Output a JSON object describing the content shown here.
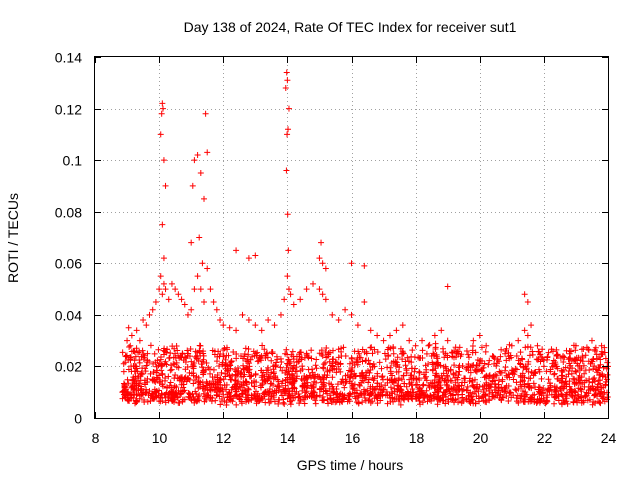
{
  "chart_data": {
    "type": "scatter",
    "title": "Day 138 of 2024, Rate Of TEC Index for receiver sut1",
    "xlabel": "GPS time / hours",
    "ylabel": "ROTI / TECUs",
    "xlim": [
      8,
      24
    ],
    "ylim": [
      0,
      0.14
    ],
    "grid": true,
    "x_ticks": [
      8,
      10,
      12,
      14,
      16,
      18,
      20,
      22,
      24
    ],
    "x_tick_labels": [
      "8",
      "10",
      "12",
      "14",
      "16",
      "18",
      "20",
      "22",
      "24"
    ],
    "y_ticks": [
      0,
      0.02,
      0.04,
      0.06,
      0.08,
      0.1,
      0.12,
      0.14
    ],
    "y_tick_labels": [
      "0",
      "0.02",
      "0.04",
      "0.06",
      "0.08",
      "0.1",
      "0.12",
      "0.14"
    ],
    "marker": "+",
    "marker_color": "#ff0000",
    "series": [
      {
        "name": "ROTI",
        "color": "#ff0000",
        "x": [
          8.9,
          8.95,
          9.0,
          9.05,
          9.1,
          9.15,
          9.2,
          9.3,
          9.4,
          9.5,
          9.6,
          9.7,
          9.8,
          9.9,
          10.0,
          10.05,
          10.1,
          10.15,
          10.2,
          10.3,
          10.4,
          10.5,
          10.6,
          10.7,
          10.8,
          10.9,
          11.0,
          11.1,
          11.2,
          11.3,
          11.4,
          11.5,
          11.6,
          11.7,
          11.8,
          11.9,
          12.0,
          12.2,
          12.4,
          12.6,
          12.8,
          13.0,
          13.2,
          13.4,
          13.6,
          13.8,
          13.9,
          14.0,
          14.05,
          14.1,
          14.2,
          14.4,
          14.6,
          14.8,
          15.0,
          15.1,
          15.2,
          15.4,
          15.6,
          15.8,
          16.0,
          16.2,
          16.4,
          16.6,
          16.8,
          17.0,
          17.2,
          17.4,
          17.6,
          17.8,
          18.0,
          18.2,
          18.4,
          18.6,
          18.8,
          19.0,
          19.2,
          19.4,
          19.6,
          19.8,
          20.0,
          20.2,
          20.4,
          20.6,
          20.8,
          21.0,
          21.2,
          21.4,
          21.5,
          21.6,
          21.8,
          22.0,
          22.2,
          22.4,
          22.6,
          22.8,
          23.0,
          23.2,
          23.4,
          23.6,
          23.8,
          24.0,
          10.05,
          10.08,
          10.1,
          10.12,
          10.15,
          10.2,
          10.1,
          10.15,
          11.0,
          11.05,
          11.1,
          11.2,
          11.3,
          11.4,
          11.45,
          11.5,
          11.25,
          11.35,
          13.95,
          13.98,
          14.0,
          14.02,
          14.05,
          13.97,
          14.01,
          14.03,
          13.99,
          15.0,
          15.05,
          15.1,
          15.2,
          16.0,
          16.4,
          21.4,
          21.5,
          23.5,
          19.0,
          12.4,
          12.8,
          13.0
        ],
        "y": [
          0.018,
          0.024,
          0.03,
          0.035,
          0.028,
          0.032,
          0.026,
          0.034,
          0.03,
          0.038,
          0.036,
          0.04,
          0.042,
          0.045,
          0.05,
          0.055,
          0.048,
          0.052,
          0.05,
          0.046,
          0.052,
          0.05,
          0.048,
          0.046,
          0.044,
          0.04,
          0.042,
          0.05,
          0.055,
          0.05,
          0.045,
          0.058,
          0.05,
          0.045,
          0.042,
          0.038,
          0.036,
          0.035,
          0.034,
          0.04,
          0.038,
          0.036,
          0.034,
          0.038,
          0.036,
          0.04,
          0.046,
          0.055,
          0.05,
          0.048,
          0.044,
          0.046,
          0.05,
          0.052,
          0.05,
          0.048,
          0.046,
          0.04,
          0.038,
          0.042,
          0.04,
          0.036,
          0.045,
          0.034,
          0.032,
          0.03,
          0.032,
          0.034,
          0.036,
          0.03,
          0.028,
          0.03,
          0.028,
          0.032,
          0.034,
          0.03,
          0.026,
          0.024,
          0.026,
          0.03,
          0.032,
          0.028,
          0.024,
          0.022,
          0.026,
          0.028,
          0.03,
          0.034,
          0.032,
          0.036,
          0.028,
          0.02,
          0.018,
          0.02,
          0.024,
          0.026,
          0.028,
          0.024,
          0.022,
          0.026,
          0.028,
          0.02,
          0.11,
          0.118,
          0.122,
          0.12,
          0.1,
          0.09,
          0.075,
          0.062,
          0.068,
          0.09,
          0.1,
          0.102,
          0.095,
          0.085,
          0.118,
          0.103,
          0.07,
          0.06,
          0.128,
          0.134,
          0.131,
          0.112,
          0.12,
          0.096,
          0.079,
          0.065,
          0.11,
          0.062,
          0.068,
          0.06,
          0.058,
          0.06,
          0.059,
          0.048,
          0.045,
          0.03,
          0.051,
          0.065,
          0.062,
          0.063
        ]
      }
    ],
    "density_band": {
      "description": "dense ROTI points across observation window",
      "x_start": 8.85,
      "x_end": 24.0,
      "typical_min": 0.005,
      "typical_max": 0.025,
      "count": 2200
    }
  }
}
